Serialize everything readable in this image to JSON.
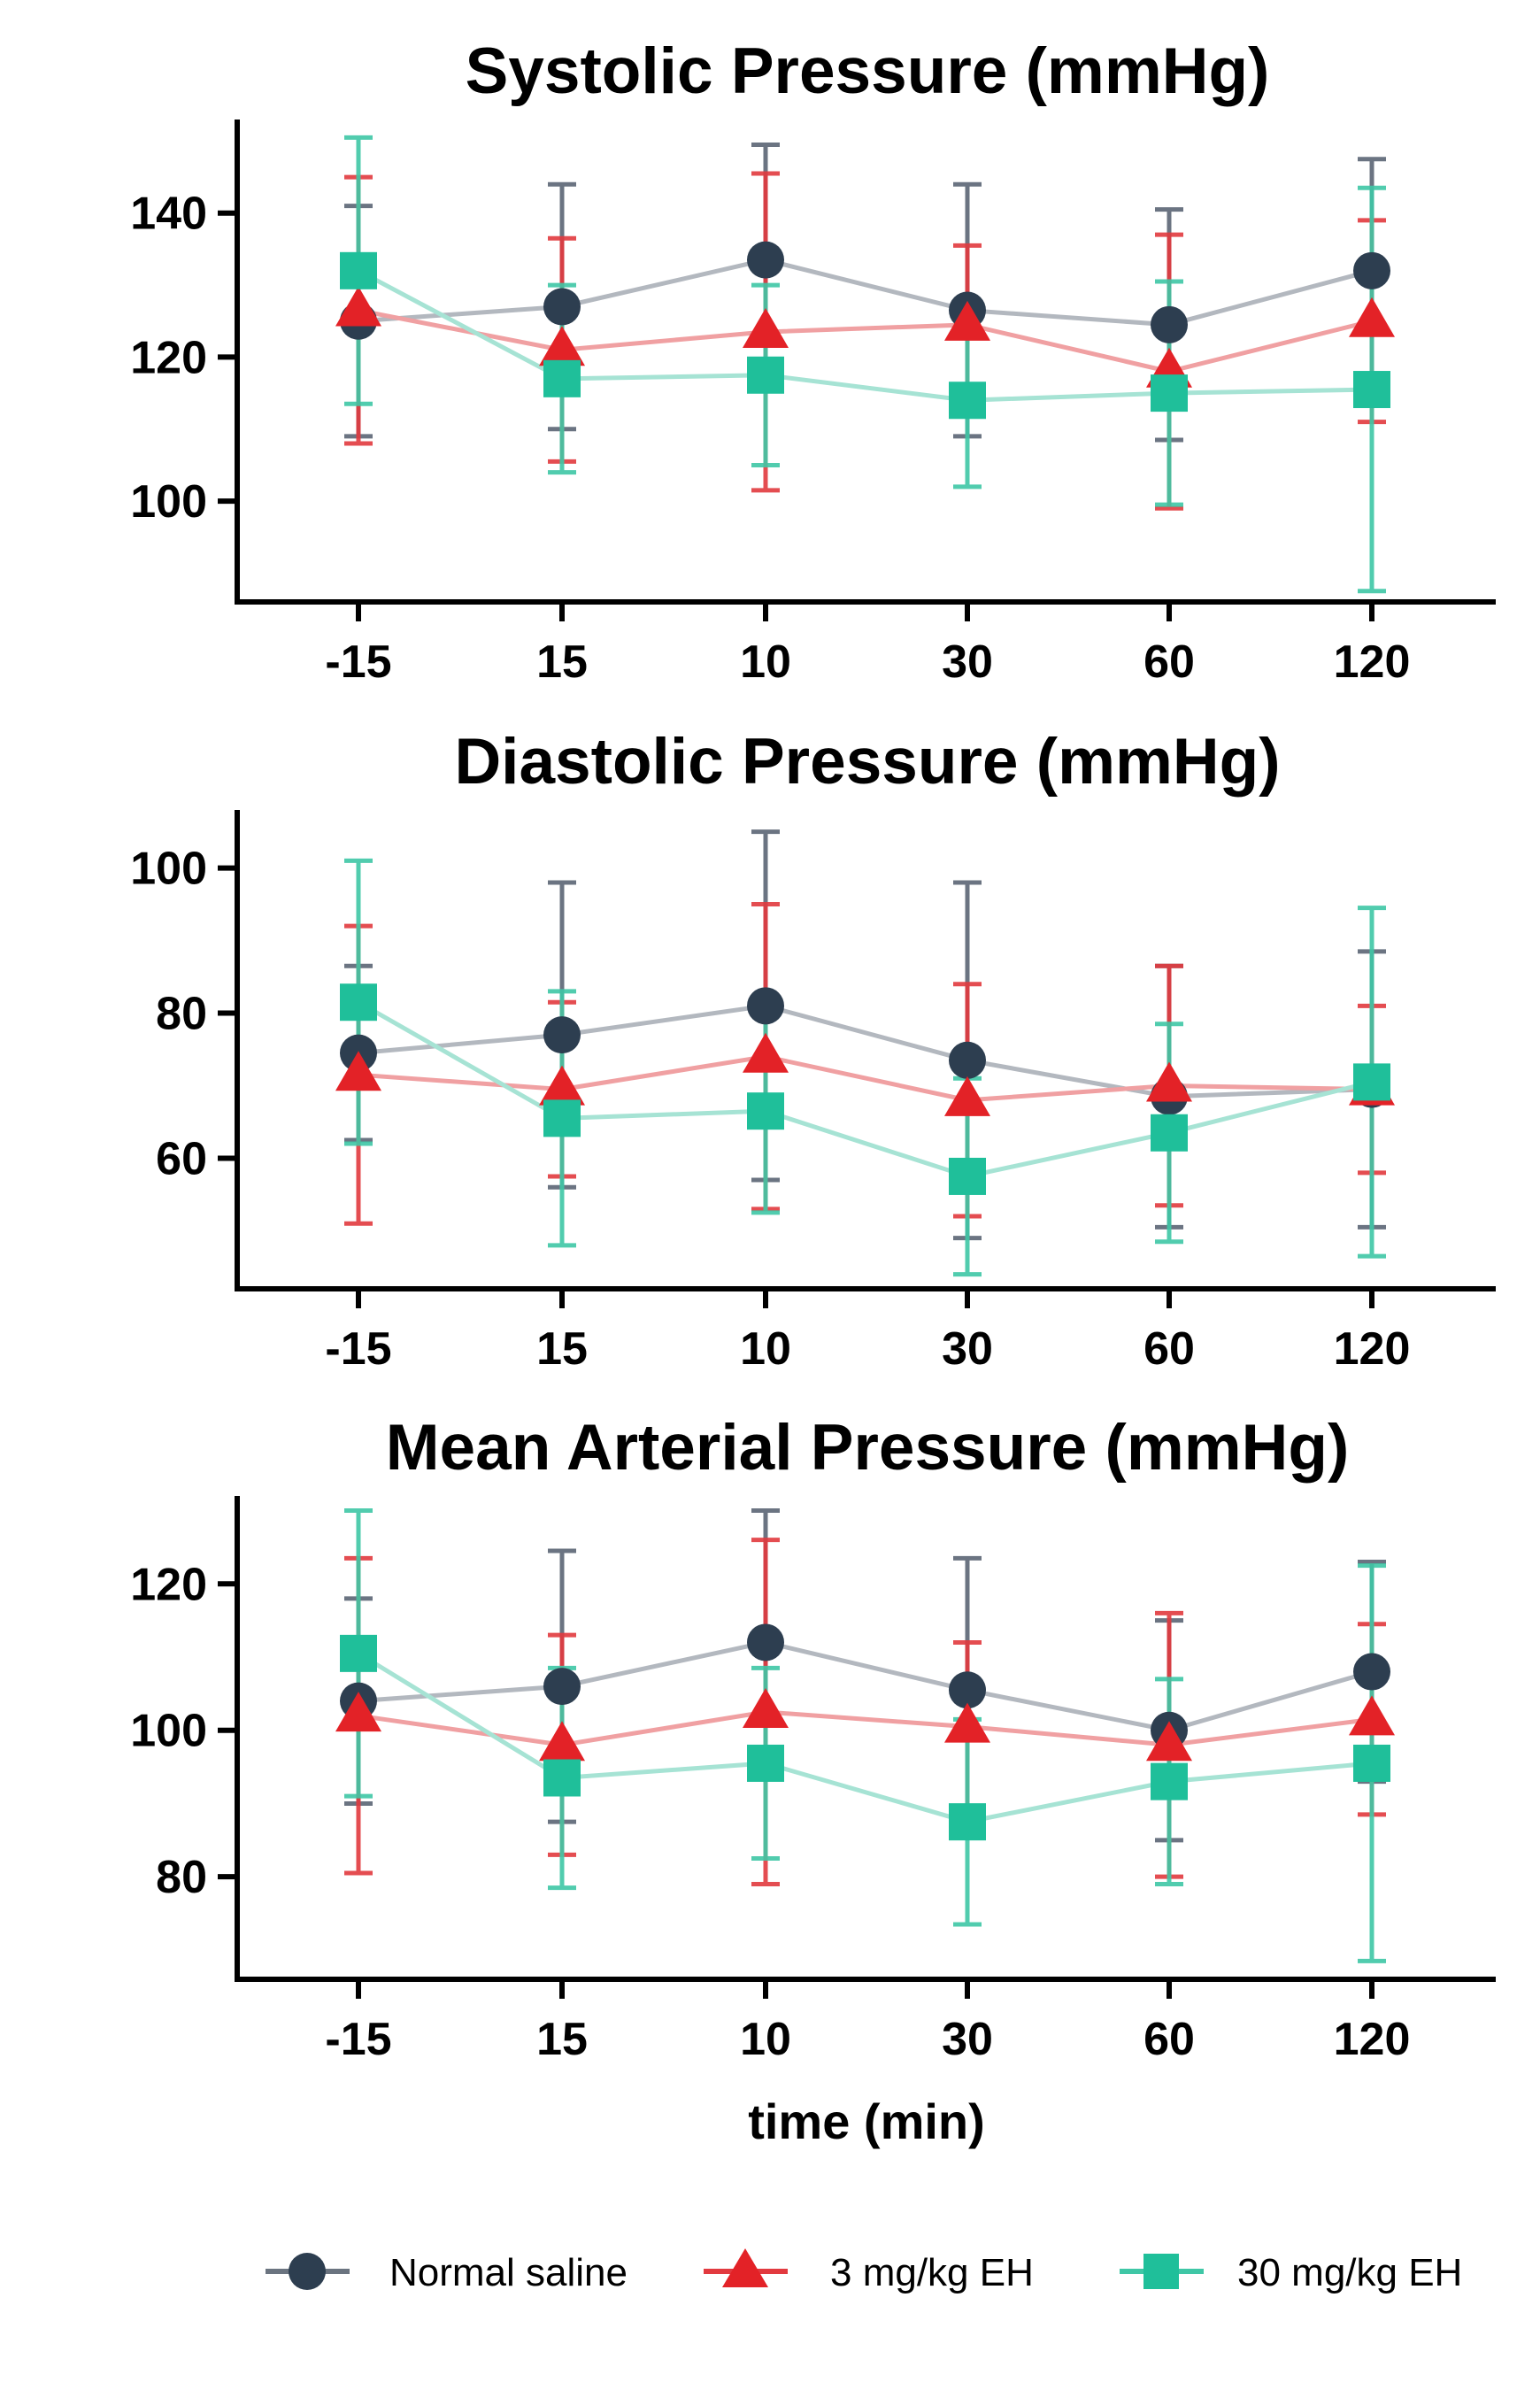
{
  "chart_data": [
    {
      "type": "line",
      "title": "Systolic Pressure (mmHg)",
      "xlabel": "",
      "ylabel": "",
      "categories": [
        "-15",
        "15",
        "10",
        "30",
        "60",
        "120"
      ],
      "ylim": [
        86,
        153
      ],
      "yticks": [
        100,
        120,
        140
      ],
      "series": [
        {
          "name": "Normal saline",
          "values": [
            125,
            127,
            133.5,
            126.5,
            124.5,
            132
          ],
          "errors": [
            16,
            17,
            16,
            17.5,
            16,
            15.5
          ]
        },
        {
          "name": "3 mg/kg EH",
          "values": [
            126.5,
            121,
            123.5,
            124.5,
            118,
            125
          ],
          "errors": [
            18.5,
            15.5,
            22,
            11,
            19,
            14
          ]
        },
        {
          "name": "30 mg/kg EH",
          "values": [
            132,
            117,
            117.5,
            114,
            115,
            115.5
          ],
          "errors": [
            18.5,
            13,
            12.5,
            12,
            15.5,
            28
          ]
        }
      ]
    },
    {
      "type": "line",
      "title": "Diastolic Pressure (mmHg)",
      "xlabel": "",
      "ylabel": "",
      "categories": [
        "-15",
        "15",
        "10",
        "30",
        "60",
        "120"
      ],
      "ylim": [
        42,
        108
      ],
      "yticks": [
        60,
        80,
        100
      ],
      "series": [
        {
          "name": "Normal saline",
          "values": [
            74.5,
            77,
            81,
            73.5,
            68.5,
            69.5
          ],
          "errors": [
            12,
            21,
            24,
            24.5,
            18,
            19
          ]
        },
        {
          "name": "3 mg/kg EH",
          "values": [
            71.5,
            69.5,
            74,
            68,
            70,
            69.5
          ],
          "errors": [
            20.5,
            12,
            21,
            16,
            16.5,
            11.5
          ]
        },
        {
          "name": "30 mg/kg EH",
          "values": [
            81.5,
            65.5,
            66.5,
            57.5,
            63.5,
            70.5
          ],
          "errors": [
            19.5,
            17.5,
            14,
            13.5,
            15,
            24
          ]
        }
      ]
    },
    {
      "type": "line",
      "title": "Mean Arterial Pressure (mmHg)",
      "xlabel": "time (min)",
      "ylabel": "",
      "categories": [
        "-15",
        "15",
        "10",
        "30",
        "60",
        "120"
      ],
      "ylim": [
        66,
        132
      ],
      "yticks": [
        80,
        100,
        120
      ],
      "series": [
        {
          "name": "Normal saline",
          "values": [
            104,
            106,
            112,
            105.5,
            100,
            108
          ],
          "errors": [
            14,
            18.5,
            18,
            18,
            15,
            15
          ]
        },
        {
          "name": "3 mg/kg EH",
          "values": [
            102,
            98,
            102.5,
            100.5,
            98,
            101.5
          ],
          "errors": [
            21.5,
            15,
            23.5,
            11.5,
            18,
            13
          ]
        },
        {
          "name": "30 mg/kg EH",
          "values": [
            110.5,
            93.5,
            95.5,
            87.5,
            93,
            95.5
          ],
          "errors": [
            19.5,
            15,
            13,
            14,
            14,
            27
          ]
        }
      ]
    }
  ],
  "legend": [
    {
      "label": "Normal saline",
      "marker": "circle",
      "color": "#2d3e50"
    },
    {
      "label": "3 mg/kg EH",
      "marker": "triangle",
      "color": "#e32227"
    },
    {
      "label": "30 mg/kg EH",
      "marker": "square",
      "color": "#1fbf9a"
    }
  ],
  "colors": {
    "Normal saline": {
      "marker": "#2d3e50",
      "line": "#b3b8bf",
      "error": "#5b6675"
    },
    "3 mg/kg EH": {
      "marker": "#e32227",
      "line": "#f0a0a2",
      "error": "#e23a3f"
    },
    "30 mg/kg EH": {
      "marker": "#1fbf9a",
      "line": "#a6e3d4",
      "error": "#3fc7a6"
    }
  }
}
